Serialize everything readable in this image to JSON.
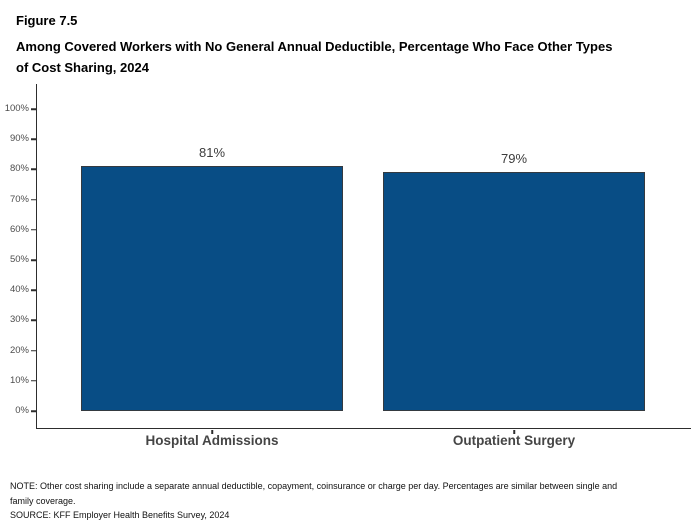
{
  "header": {
    "figure_label": "Figure 7.5",
    "title_line1": "Among Covered Workers with No General Annual Deductible, Percentage Who Face Other Types",
    "title_line2": "of Cost Sharing, 2024"
  },
  "chart_data": {
    "type": "bar",
    "title": "Among Covered Workers with No General Annual Deductible, Percentage Who Face Other Types of Cost Sharing, 2024",
    "categories": [
      "Hospital Admissions",
      "Outpatient Surgery"
    ],
    "values": [
      81,
      79
    ],
    "value_labels": [
      "81%",
      "79%"
    ],
    "xlabel": "",
    "ylabel": "",
    "ylim": [
      0,
      100
    ],
    "y_tick_values": [
      0,
      10,
      20,
      30,
      40,
      50,
      60,
      70,
      80,
      90,
      100
    ],
    "y_tick_labels": [
      "0%",
      "10%",
      "20%",
      "30%",
      "40%",
      "50%",
      "60%",
      "70%",
      "80%",
      "90%",
      "100%"
    ],
    "grid": false,
    "legend_position": "none",
    "bar_color": "#084D85",
    "bar_border_color": "#343A40",
    "axis_color": "#2D2D2D"
  },
  "footer": {
    "note_line1": "NOTE: Other cost sharing include a separate annual deductible, copayment, coinsurance or charge per day. Percentages are similar between single and",
    "note_line2": "family coverage.",
    "source": "SOURCE: KFF Employer Health Benefits Survey, 2024"
  }
}
